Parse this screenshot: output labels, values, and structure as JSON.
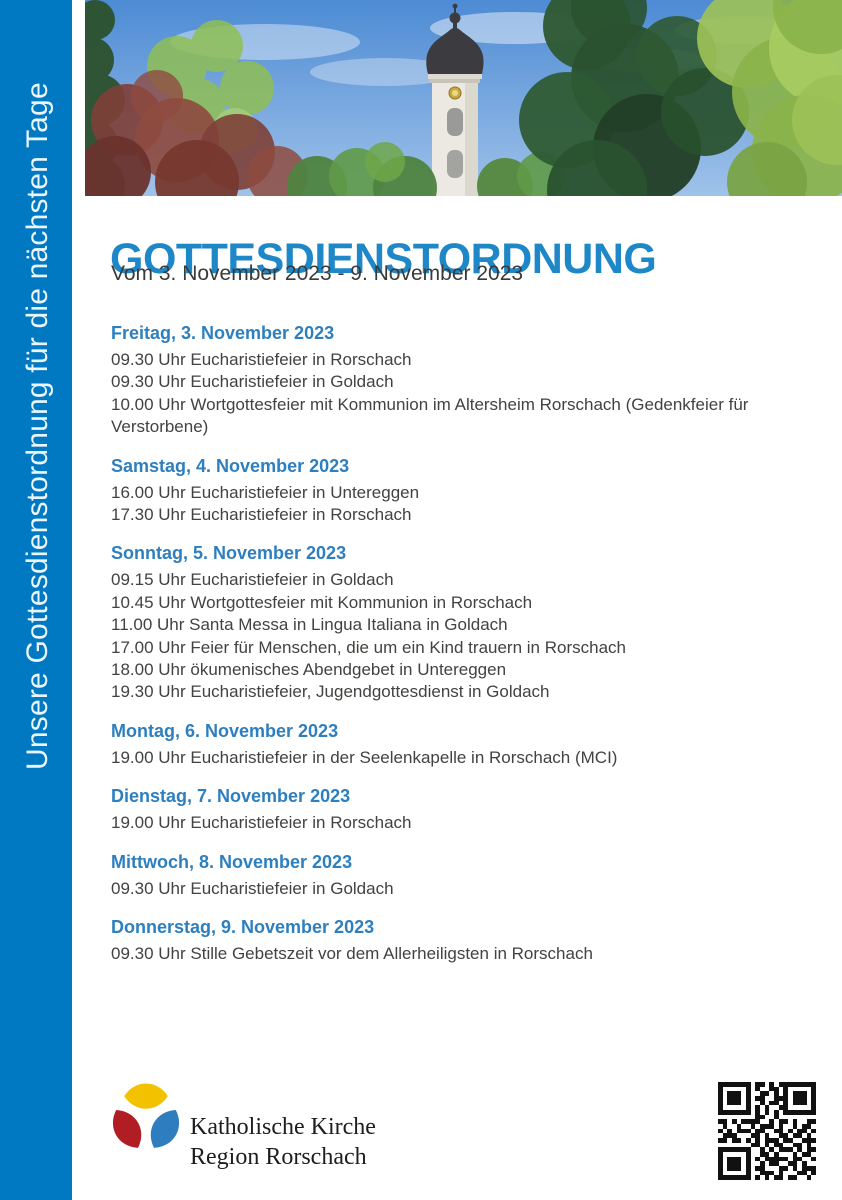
{
  "sidebar": {
    "vertical_text": "Unsere Gottesdienstordnung für die nächsten Tage",
    "background_color": "#0079c2"
  },
  "header_photo": {
    "alt": "Kirchturm mit Zwiebelkuppel zwischen Bäumen unter blauem Himmel"
  },
  "page_header": {
    "title": "GOTTESDIENSTORDNUNG",
    "subtitle": "Vom 3. November 2023 - 9. November 2023",
    "title_color": "#1e87c8"
  },
  "schedule": {
    "heading_color": "#2d7fbf",
    "days": [
      {
        "title": "Freitag, 3. November 2023",
        "items": [
          "09.30 Uhr Eucharistiefeier in Rorschach",
          "09.30 Uhr Eucharistiefeier in Goldach",
          "10.00 Uhr Wortgottesfeier mit Kommunion im Altersheim Rorschach (Gedenkfeier für Verstorbene)"
        ]
      },
      {
        "title": "Samstag, 4. November 2023",
        "items": [
          "16.00 Uhr Eucharistiefeier in Untereggen",
          "17.30 Uhr Eucharistiefeier in Rorschach"
        ]
      },
      {
        "title": "Sonntag, 5. November 2023",
        "items": [
          "09.15 Uhr Eucharistiefeier in Goldach",
          "10.45 Uhr Wortgottesfeier mit Kommunion in Rorschach",
          "11.00 Uhr Santa Messa in Lingua Italiana in Goldach",
          "17.00 Uhr Feier für Menschen, die um ein Kind trauern in Rorschach",
          "18.00 Uhr ökumenisches Abendgebet in Untereggen",
          "19.30 Uhr Eucharistiefeier, Jugendgottesdienst in Goldach"
        ]
      },
      {
        "title": "Montag, 6. November 2023",
        "items": [
          "19.00 Uhr Eucharistiefeier in der Seelenkapelle in Rorschach (MCI)"
        ]
      },
      {
        "title": "Dienstag, 7. November 2023",
        "items": [
          "19.00 Uhr Eucharistiefeier in Rorschach"
        ]
      },
      {
        "title": "Mittwoch, 8. November 2023",
        "items": [
          "09.30 Uhr Eucharistiefeier in Goldach"
        ]
      },
      {
        "title": "Donnerstag, 9. November 2023",
        "items": [
          "09.30 Uhr Stille Gebetszeit vor dem Allerheiligsten in Rorschach"
        ]
      }
    ]
  },
  "footer": {
    "org_line1": "Katholische Kirche",
    "org_line2": "Region Rorschach",
    "logo_colors": {
      "yellow": "#f2c200",
      "red": "#b01d23",
      "blue": "#2e7dbf"
    }
  },
  "qr": {
    "rows": [
      "111111101101011111111",
      "100000101001101000001",
      "101110100110101011101",
      "101110101100111011101",
      "101110100101101011101",
      "100000101010011000001",
      "111111101010101111111",
      "000000001100100000000",
      "110101111001011010011",
      "010010010111010010110",
      "101011101100110101101",
      "011100011010011011010",
      "110110101011101100111",
      "000000011010110011010",
      "111111100101011101011",
      "100000100110100010110",
      "101110101011111011001",
      "101110100101100110100",
      "101110101100011010111",
      "100000100111010001101",
      "111111101010110110010"
    ]
  }
}
